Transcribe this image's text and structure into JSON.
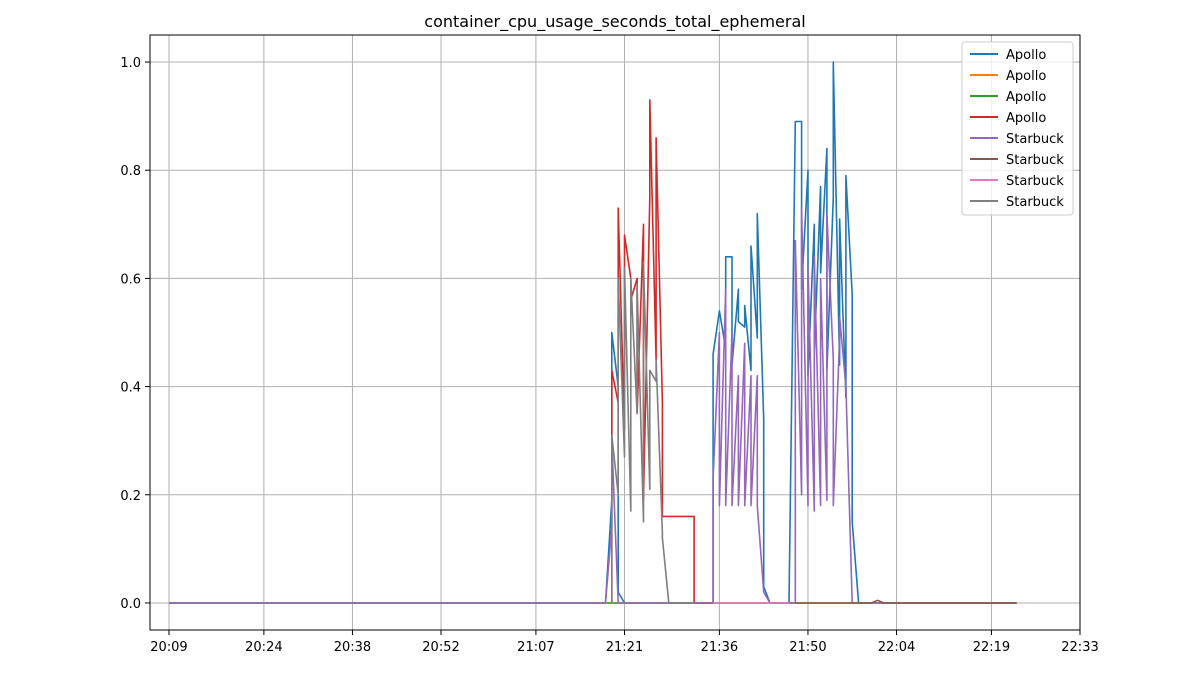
{
  "chart_data": {
    "type": "line",
    "title": "container_cpu_usage_seconds_total_ephemeral",
    "xlabel": "",
    "ylabel": "",
    "x_ticks": [
      "20:09",
      "20:24",
      "20:38",
      "20:52",
      "21:07",
      "21:21",
      "21:36",
      "21:50",
      "22:04",
      "22:19",
      "22:33"
    ],
    "y_ticks": [
      "0.0",
      "0.2",
      "0.4",
      "0.6",
      "0.8",
      "1.0"
    ],
    "xlim": [
      "20:06",
      "22:33"
    ],
    "ylim": [
      -0.05,
      1.05
    ],
    "grid": true,
    "legend_position": "top-right",
    "series": [
      {
        "name": "Apollo",
        "color": "#1f77b4",
        "points": [
          [
            "20:09",
            0
          ],
          [
            "21:06",
            0
          ],
          [
            "21:18",
            0
          ],
          [
            "21:19",
            0.19
          ],
          [
            "21:19",
            0.5
          ],
          [
            "21:20",
            0.4
          ],
          [
            "21:20",
            0.02
          ],
          [
            "21:21",
            0
          ],
          [
            "21:35",
            0
          ],
          [
            "21:35",
            0.46
          ],
          [
            "21:36",
            0.54
          ],
          [
            "21:37",
            0.47
          ],
          [
            "21:37",
            0.64
          ],
          [
            "21:38",
            0.64
          ],
          [
            "21:38",
            0.44
          ],
          [
            "21:39",
            0.58
          ],
          [
            "21:39",
            0.52
          ],
          [
            "21:40",
            0.51
          ],
          [
            "21:40",
            0.55
          ],
          [
            "21:41",
            0.43
          ],
          [
            "21:41",
            0.66
          ],
          [
            "21:42",
            0.49
          ],
          [
            "21:42",
            0.72
          ],
          [
            "21:43",
            0.34
          ],
          [
            "21:43",
            0.03
          ],
          [
            "21:44",
            0
          ],
          [
            "21:47",
            0
          ],
          [
            "21:48",
            0.89
          ],
          [
            "21:49",
            0.89
          ],
          [
            "21:49",
            0.58
          ],
          [
            "21:50",
            0.8
          ],
          [
            "21:50",
            0.42
          ],
          [
            "21:51",
            0.7
          ],
          [
            "21:51",
            0.46
          ],
          [
            "21:52",
            0.77
          ],
          [
            "21:52",
            0.61
          ],
          [
            "21:53",
            0.84
          ],
          [
            "21:53",
            0.43
          ],
          [
            "21:54",
            0.75
          ],
          [
            "21:54",
            1.0
          ],
          [
            "21:55",
            0.44
          ],
          [
            "21:55",
            0.71
          ],
          [
            "21:56",
            0.38
          ],
          [
            "21:56",
            0.79
          ],
          [
            "21:57",
            0.57
          ],
          [
            "21:57",
            0.15
          ],
          [
            "21:58",
            0
          ],
          [
            "22:04",
            0
          ],
          [
            "22:23",
            0
          ]
        ]
      },
      {
        "name": "Apollo",
        "color": "#ff7f0e",
        "points": [
          [
            "20:09",
            0
          ],
          [
            "22:23",
            0
          ]
        ]
      },
      {
        "name": "Apollo",
        "color": "#2ca02c",
        "points": [
          [
            "20:09",
            0
          ],
          [
            "22:23",
            0
          ]
        ]
      },
      {
        "name": "Apollo",
        "color": "#d62728",
        "points": [
          [
            "21:19",
            0
          ],
          [
            "21:19",
            0.43
          ],
          [
            "21:20",
            0.37
          ],
          [
            "21:20",
            0.73
          ],
          [
            "21:21",
            0.32
          ],
          [
            "21:21",
            0.68
          ],
          [
            "21:22",
            0.6
          ],
          [
            "21:22",
            0.56
          ],
          [
            "21:23",
            0.6
          ],
          [
            "21:23",
            0.35
          ],
          [
            "21:24",
            0.7
          ],
          [
            "21:24",
            0.19
          ],
          [
            "21:25",
            0.75
          ],
          [
            "21:25",
            0.93
          ],
          [
            "21:26",
            0.45
          ],
          [
            "21:26",
            0.86
          ],
          [
            "21:27",
            0.37
          ],
          [
            "21:27",
            0.16
          ],
          [
            "21:32",
            0.16
          ],
          [
            "21:32",
            0
          ],
          [
            "21:35",
            0
          ]
        ]
      },
      {
        "name": "Starbuck",
        "color": "#9467bd",
        "points": [
          [
            "20:09",
            0
          ],
          [
            "21:18",
            0
          ],
          [
            "21:19",
            0.14
          ],
          [
            "21:19",
            0.3
          ],
          [
            "21:20",
            0
          ],
          [
            "21:35",
            0
          ],
          [
            "21:35",
            0.23
          ],
          [
            "21:36",
            0.5
          ],
          [
            "21:36",
            0.18
          ],
          [
            "21:37",
            0.58
          ],
          [
            "21:37",
            0.18
          ],
          [
            "21:38",
            0.5
          ],
          [
            "21:38",
            0.18
          ],
          [
            "21:39",
            0.42
          ],
          [
            "21:39",
            0.18
          ],
          [
            "21:40",
            0.48
          ],
          [
            "21:40",
            0.18
          ],
          [
            "21:41",
            0.42
          ],
          [
            "21:41",
            0.18
          ],
          [
            "21:42",
            0.42
          ],
          [
            "21:42",
            0.18
          ],
          [
            "21:43",
            0.02
          ],
          [
            "21:44",
            0
          ],
          [
            "21:48",
            0
          ],
          [
            "21:48",
            0.67
          ],
          [
            "21:49",
            0.2
          ],
          [
            "21:49",
            0.73
          ],
          [
            "21:50",
            0.18
          ],
          [
            "21:50",
            0.62
          ],
          [
            "21:51",
            0.17
          ],
          [
            "21:51",
            0.64
          ],
          [
            "21:52",
            0.18
          ],
          [
            "21:52",
            0.6
          ],
          [
            "21:53",
            0.19
          ],
          [
            "21:53",
            0.72
          ],
          [
            "21:54",
            0.45
          ],
          [
            "21:54",
            0.18
          ],
          [
            "21:55",
            0.49
          ],
          [
            "21:55",
            0.53
          ],
          [
            "21:56",
            0.4
          ],
          [
            "21:57",
            0
          ],
          [
            "22:04",
            0
          ],
          [
            "22:23",
            0
          ]
        ]
      },
      {
        "name": "Starbuck",
        "color": "#8c564b",
        "points": [
          [
            "21:48",
            0
          ],
          [
            "22:00",
            0
          ],
          [
            "22:01",
            0.005
          ],
          [
            "22:02",
            0
          ],
          [
            "22:23",
            0
          ]
        ]
      },
      {
        "name": "Starbuck",
        "color": "#e377c2",
        "points": [
          [
            "21:35",
            0
          ],
          [
            "21:47",
            0
          ]
        ]
      },
      {
        "name": "Starbuck",
        "color": "#7f7f7f",
        "points": [
          [
            "21:19",
            0
          ],
          [
            "21:19",
            0.31
          ],
          [
            "21:20",
            0.2
          ],
          [
            "21:20",
            0.6
          ],
          [
            "21:21",
            0.27
          ],
          [
            "21:21",
            0.62
          ],
          [
            "21:22",
            0.17
          ],
          [
            "21:22",
            0.6
          ],
          [
            "21:23",
            0.35
          ],
          [
            "21:23",
            0.59
          ],
          [
            "21:24",
            0.15
          ],
          [
            "21:24",
            0.63
          ],
          [
            "21:25",
            0.21
          ],
          [
            "21:25",
            0.43
          ],
          [
            "21:26",
            0.41
          ],
          [
            "21:26",
            0.45
          ],
          [
            "21:27",
            0.13
          ],
          [
            "21:27",
            0.12
          ],
          [
            "21:28",
            0
          ],
          [
            "21:32",
            0
          ]
        ]
      }
    ]
  }
}
